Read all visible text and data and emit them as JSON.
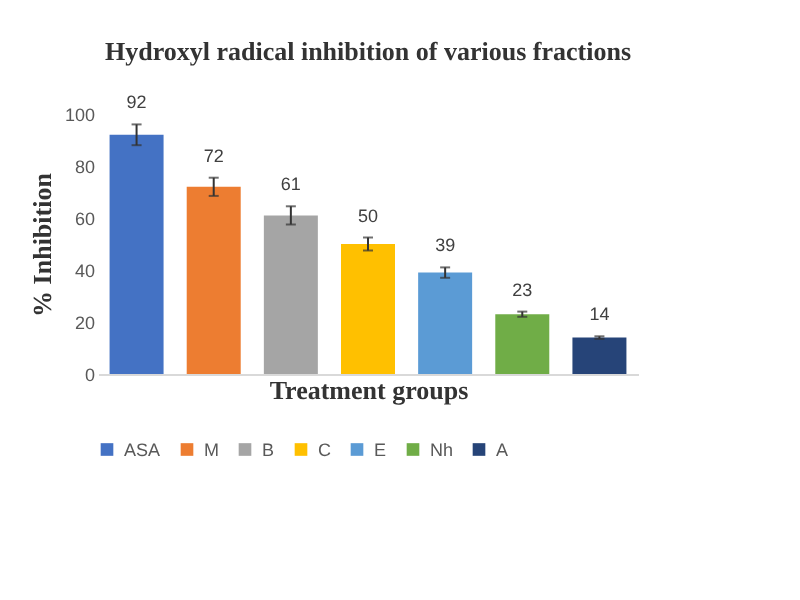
{
  "chart_data": {
    "type": "bar",
    "title": "Hydroxyl radical inhibition of various fractions",
    "xlabel": "Treatment groups",
    "ylabel": "% Inhibition",
    "categories": [
      null,
      null,
      null,
      null,
      null,
      null,
      null
    ],
    "series": [
      {
        "name": "ASA",
        "color": "#4472c4",
        "values": [
          92,
          null,
          null,
          null,
          null,
          null,
          null
        ],
        "errors": [
          4,
          null,
          null,
          null,
          null,
          null,
          null
        ]
      },
      {
        "name": "M",
        "color": "#ed7d31",
        "values": [
          null,
          72,
          null,
          null,
          null,
          null,
          null
        ],
        "errors": [
          null,
          3.5,
          null,
          null,
          null,
          null,
          null
        ]
      },
      {
        "name": "B",
        "color": "#a5a5a5",
        "values": [
          null,
          null,
          61,
          null,
          null,
          null,
          null
        ],
        "errors": [
          null,
          null,
          3.5,
          null,
          null,
          null,
          null
        ]
      },
      {
        "name": "C",
        "color": "#ffc000",
        "values": [
          null,
          null,
          null,
          50,
          null,
          null,
          null
        ],
        "errors": [
          null,
          null,
          null,
          2.5,
          null,
          null,
          null
        ]
      },
      {
        "name": "E",
        "color": "#5b9bd5",
        "values": [
          null,
          null,
          null,
          null,
          39,
          null,
          null
        ],
        "errors": [
          null,
          null,
          null,
          null,
          2,
          null,
          null
        ]
      },
      {
        "name": "Nh",
        "color": "#70ad47",
        "values": [
          null,
          null,
          null,
          null,
          null,
          23,
          null
        ],
        "errors": [
          null,
          null,
          null,
          null,
          null,
          1,
          null
        ]
      },
      {
        "name": "A",
        "color": "#264478",
        "values": [
          null,
          null,
          null,
          null,
          null,
          null,
          14
        ],
        "errors": [
          null,
          null,
          null,
          null,
          null,
          null,
          0.5
        ]
      }
    ],
    "ylim": [
      0,
      100
    ],
    "yticks": [
      0,
      20,
      40,
      60,
      80,
      100
    ],
    "data_labels": true,
    "legend": "bottom",
    "tick_labels": "y",
    "grid": false
  }
}
